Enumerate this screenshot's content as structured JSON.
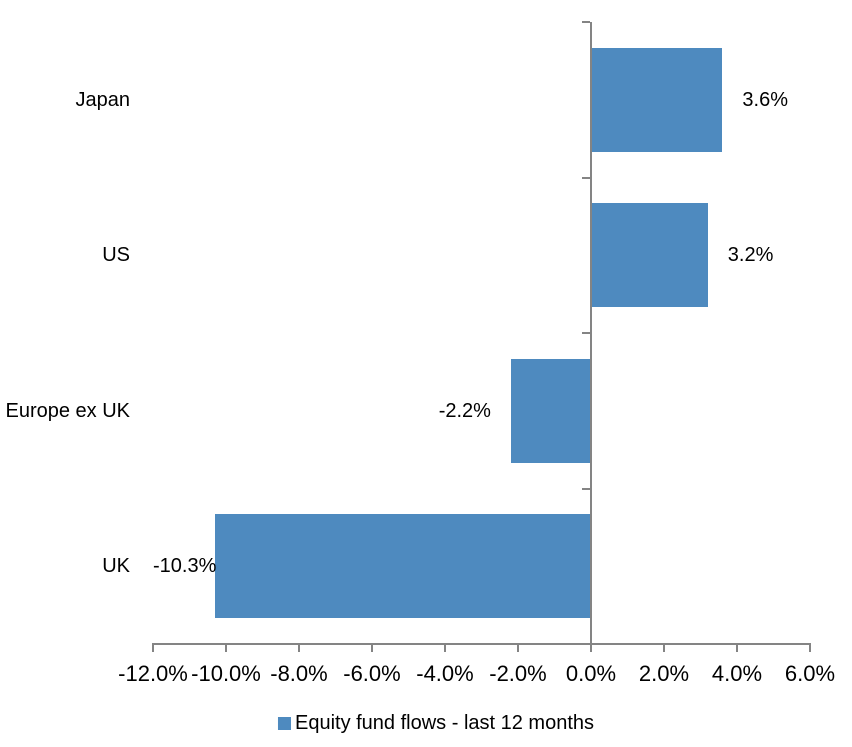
{
  "chart_data": {
    "type": "bar",
    "orientation": "horizontal",
    "title": "",
    "categories": [
      "Japan",
      "US",
      "Europe ex UK",
      "UK"
    ],
    "series": [
      {
        "name": "Equity fund flows - last 12 months",
        "values": [
          3.6,
          3.2,
          -2.2,
          -10.3
        ],
        "value_labels": [
          "3.6%",
          "3.2%",
          "-2.2%",
          "-10.3%"
        ],
        "color": "#4E8ABF"
      }
    ],
    "xlim": [
      -12,
      6
    ],
    "x_ticks": [
      {
        "value": -12,
        "label": "-12.0%"
      },
      {
        "value": -10,
        "label": "-10.0%"
      },
      {
        "value": -8,
        "label": "-8.0%"
      },
      {
        "value": -6,
        "label": "-6.0%"
      },
      {
        "value": -4,
        "label": "-4.0%"
      },
      {
        "value": -2,
        "label": "-2.0%"
      },
      {
        "value": 0,
        "label": "0.0%"
      },
      {
        "value": 2,
        "label": "2.0%"
      },
      {
        "value": 4,
        "label": "4.0%"
      },
      {
        "value": 6,
        "label": "6.0%"
      }
    ],
    "xlabel": "",
    "ylabel": "",
    "grid": false,
    "legend_position": "bottom-center",
    "colors": {
      "bar": "#4E8ABF",
      "axis": "#848484",
      "text": "#000000",
      "background": "#ffffff"
    }
  }
}
